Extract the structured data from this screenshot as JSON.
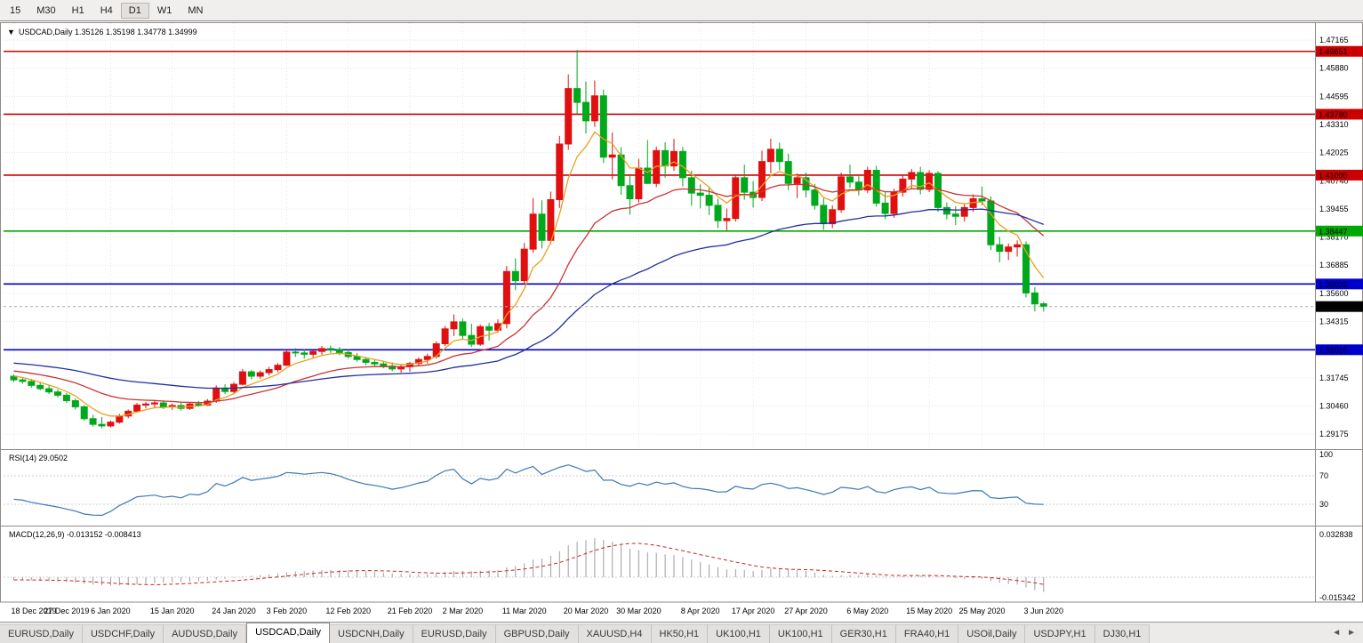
{
  "toolbar": {
    "timeframes": [
      "15",
      "M30",
      "H1",
      "H4",
      "D1",
      "W1",
      "MN"
    ],
    "active": "D1"
  },
  "chart_title": {
    "dropdown_glyph": "▼",
    "symbol": "USDCAD,Daily",
    "open": "1.35126",
    "high": "1.35198",
    "low": "1.34778",
    "close": "1.34999"
  },
  "price_axis": {
    "labels": [
      "1.47165",
      "1.45880",
      "1.44595",
      "1.43310",
      "1.42025",
      "1.40740",
      "1.39455",
      "1.38170",
      "1.36885",
      "1.35600",
      "1.34315",
      "1.33030",
      "1.31745",
      "1.30460",
      "1.29175"
    ]
  },
  "levels": [
    {
      "price": 1.46651,
      "label": "1.46651",
      "color": "#CC0000",
      "kind": "resistance"
    },
    {
      "price": 1.4378,
      "label": "1.43780",
      "color": "#CC0000",
      "kind": "resistance"
    },
    {
      "price": 1.41,
      "label": "1.41000",
      "color": "#CC0000",
      "kind": "resistance"
    },
    {
      "price": 1.38447,
      "label": "1.38447",
      "color": "#00A800",
      "kind": "support"
    },
    {
      "price": 1.36029,
      "label": "1.36029",
      "color": "#0000CC",
      "kind": "support"
    },
    {
      "price": 1.33026,
      "label": "1.33026",
      "color": "#0000CC",
      "kind": "support"
    }
  ],
  "current_price": {
    "price": 1.34999,
    "label": "1.34999"
  },
  "rsi": {
    "name": "RSI(14)",
    "value": "29.0502",
    "axis_labels": [
      "100",
      "70",
      "30"
    ],
    "levels": [
      70,
      30
    ],
    "line_color": "#3b77b5"
  },
  "macd": {
    "name": "MACD(12,26,9)",
    "value_main": "-0.013152",
    "value_signal": "-0.008413",
    "axis_top": "0.032838",
    "axis_bottom": "-0.015342",
    "hist_color": "#9e9e9e",
    "signal_color": "#cc2222"
  },
  "date_axis": {
    "labels": [
      {
        "text": "18 Dec 2019",
        "bar": 0
      },
      {
        "text": "27 Dec 2019",
        "bar": 6
      },
      {
        "text": "6 Jan 2020",
        "bar": 11
      },
      {
        "text": "15 Jan 2020",
        "bar": 18
      },
      {
        "text": "24 Jan 2020",
        "bar": 25
      },
      {
        "text": "3 Feb 2020",
        "bar": 31
      },
      {
        "text": "12 Feb 2020",
        "bar": 38
      },
      {
        "text": "21 Feb 2020",
        "bar": 45
      },
      {
        "text": "2 Mar 2020",
        "bar": 51
      },
      {
        "text": "11 Mar 2020",
        "bar": 58
      },
      {
        "text": "20 Mar 2020",
        "bar": 65
      },
      {
        "text": "30 Mar 2020",
        "bar": 71
      },
      {
        "text": "8 Apr 2020",
        "bar": 78
      },
      {
        "text": "17 Apr 2020",
        "bar": 84
      },
      {
        "text": "27 Apr 2020",
        "bar": 90
      },
      {
        "text": "6 May 2020",
        "bar": 97
      },
      {
        "text": "15 May 2020",
        "bar": 104
      },
      {
        "text": "25 May 2020",
        "bar": 110
      },
      {
        "text": "3 Jun 2020",
        "bar": 117
      }
    ]
  },
  "tabs": {
    "items": [
      "EURUSD,Daily",
      "USDCHF,Daily",
      "AUDUSD,Daily",
      "USDCAD,Daily",
      "USDCNH,Daily",
      "EURUSD,Daily",
      "GBPUSD,Daily",
      "XAUUSD,H4",
      "HK50,H1",
      "UK100,H1",
      "UK100,H1",
      "GER30,H1",
      "FRA40,H1",
      "USOil,Daily",
      "USDJPY,H1",
      "DJ30,H1"
    ],
    "active_index": 3,
    "scroll_icons": {
      "left": "◄",
      "right": "►"
    }
  },
  "chart_data": {
    "type": "candlestick",
    "symbol": "USDCAD",
    "timeframe": "Daily",
    "colors": {
      "up": "#E01010",
      "down": "#00A81C"
    },
    "overlays": [
      {
        "name": "ema-fast",
        "period": 6,
        "color": "#e8a020"
      },
      {
        "name": "ema-mid",
        "period": 20,
        "color": "#cc3333"
      },
      {
        "name": "ema-slow",
        "period": 50,
        "color": "#232f9e"
      }
    ],
    "pad": {
      "start": 1.333,
      "end": 1.318,
      "count": 50
    },
    "candles": [
      [
        1.3182,
        1.319,
        1.3155,
        1.3165
      ],
      [
        1.3165,
        1.3178,
        1.3148,
        1.3158
      ],
      [
        1.3158,
        1.317,
        1.313,
        1.314
      ],
      [
        1.314,
        1.3155,
        1.3118,
        1.3125
      ],
      [
        1.3125,
        1.314,
        1.31,
        1.311
      ],
      [
        1.311,
        1.3122,
        1.3085,
        1.3095
      ],
      [
        1.3095,
        1.3105,
        1.306,
        1.307
      ],
      [
        1.307,
        1.308,
        1.303,
        1.3042
      ],
      [
        1.3042,
        1.305,
        1.298,
        1.2988
      ],
      [
        1.2988,
        1.3005,
        1.2952,
        1.2962
      ],
      [
        1.2962,
        1.2995,
        1.2945,
        1.2955
      ],
      [
        1.2955,
        1.298,
        1.2948,
        1.2972
      ],
      [
        1.2972,
        1.301,
        1.2965,
        1.3
      ],
      [
        1.3,
        1.303,
        1.299,
        1.3022
      ],
      [
        1.3022,
        1.306,
        1.3015,
        1.305
      ],
      [
        1.305,
        1.3065,
        1.3035,
        1.3055
      ],
      [
        1.3055,
        1.307,
        1.304,
        1.306
      ],
      [
        1.306,
        1.3072,
        1.3032,
        1.3042
      ],
      [
        1.3042,
        1.3058,
        1.3028,
        1.3048
      ],
      [
        1.3048,
        1.306,
        1.3025,
        1.3035
      ],
      [
        1.3035,
        1.3062,
        1.3028,
        1.3055
      ],
      [
        1.3055,
        1.3068,
        1.3042,
        1.305
      ],
      [
        1.305,
        1.3078,
        1.3045,
        1.3068
      ],
      [
        1.3068,
        1.314,
        1.306,
        1.3128
      ],
      [
        1.3128,
        1.3145,
        1.31,
        1.3112
      ],
      [
        1.3112,
        1.3155,
        1.3105,
        1.3145
      ],
      [
        1.3145,
        1.3215,
        1.314,
        1.3202
      ],
      [
        1.3202,
        1.321,
        1.3168,
        1.3182
      ],
      [
        1.3182,
        1.3208,
        1.317,
        1.3198
      ],
      [
        1.3198,
        1.3225,
        1.3185,
        1.3212
      ],
      [
        1.3212,
        1.3242,
        1.32,
        1.3232
      ],
      [
        1.3232,
        1.3302,
        1.3228,
        1.3292
      ],
      [
        1.3292,
        1.331,
        1.327,
        1.3288
      ],
      [
        1.3288,
        1.3305,
        1.3262,
        1.3282
      ],
      [
        1.3282,
        1.33,
        1.3268,
        1.3295
      ],
      [
        1.3295,
        1.332,
        1.328,
        1.3308
      ],
      [
        1.3308,
        1.3322,
        1.3288,
        1.3302
      ],
      [
        1.3302,
        1.3315,
        1.3278,
        1.329
      ],
      [
        1.329,
        1.3305,
        1.3262,
        1.3272
      ],
      [
        1.3272,
        1.3288,
        1.3248,
        1.3258
      ],
      [
        1.3258,
        1.327,
        1.3232,
        1.3245
      ],
      [
        1.3245,
        1.326,
        1.3228,
        1.3238
      ],
      [
        1.3238,
        1.3252,
        1.3218,
        1.3228
      ],
      [
        1.3228,
        1.3245,
        1.3205,
        1.3215
      ],
      [
        1.3215,
        1.3235,
        1.3198,
        1.3225
      ],
      [
        1.3225,
        1.3248,
        1.3202,
        1.324
      ],
      [
        1.324,
        1.3268,
        1.3228,
        1.3258
      ],
      [
        1.3258,
        1.3285,
        1.324,
        1.3272
      ],
      [
        1.3272,
        1.3342,
        1.3262,
        1.333
      ],
      [
        1.333,
        1.3412,
        1.332,
        1.3398
      ],
      [
        1.3398,
        1.3464,
        1.3365,
        1.343
      ],
      [
        1.343,
        1.3445,
        1.335,
        1.3368
      ],
      [
        1.3368,
        1.3422,
        1.3315,
        1.3328
      ],
      [
        1.3328,
        1.3418,
        1.332,
        1.3408
      ],
      [
        1.3408,
        1.3425,
        1.3345,
        1.3392
      ],
      [
        1.3392,
        1.3442,
        1.338,
        1.3422
      ],
      [
        1.3422,
        1.3685,
        1.34,
        1.366
      ],
      [
        1.366,
        1.372,
        1.3575,
        1.3618
      ],
      [
        1.3618,
        1.379,
        1.36,
        1.3762
      ],
      [
        1.3762,
        1.3995,
        1.3745,
        1.3922
      ],
      [
        1.3922,
        1.3985,
        1.3765,
        1.3802
      ],
      [
        1.3802,
        1.4025,
        1.3785,
        1.3988
      ],
      [
        1.3988,
        1.4279,
        1.395,
        1.4242
      ],
      [
        1.4242,
        1.456,
        1.4215,
        1.4495
      ],
      [
        1.4495,
        1.4672,
        1.438,
        1.4432
      ],
      [
        1.4432,
        1.4528,
        1.429,
        1.4348
      ],
      [
        1.4348,
        1.4532,
        1.432,
        1.4462
      ],
      [
        1.4462,
        1.449,
        1.4155,
        1.4182
      ],
      [
        1.4182,
        1.4295,
        1.408,
        1.4192
      ],
      [
        1.4192,
        1.4228,
        1.401,
        1.4052
      ],
      [
        1.4052,
        1.4105,
        1.392,
        1.3992
      ],
      [
        1.3992,
        1.4175,
        1.3975,
        1.4132
      ],
      [
        1.4132,
        1.426,
        1.406,
        1.4062
      ],
      [
        1.4062,
        1.423,
        1.4045,
        1.4212
      ],
      [
        1.4212,
        1.425,
        1.4088,
        1.4142
      ],
      [
        1.4142,
        1.4265,
        1.412,
        1.4208
      ],
      [
        1.4208,
        1.4228,
        1.4048,
        1.4088
      ],
      [
        1.4088,
        1.412,
        1.396,
        1.4018
      ],
      [
        1.4018,
        1.4058,
        1.3948,
        1.4008
      ],
      [
        1.4008,
        1.4042,
        1.3918,
        1.3962
      ],
      [
        1.3962,
        1.3992,
        1.3858,
        1.3892
      ],
      [
        1.3892,
        1.3948,
        1.3848,
        1.3902
      ],
      [
        1.3902,
        1.4102,
        1.3888,
        1.4088
      ],
      [
        1.4088,
        1.4148,
        1.3988,
        1.4022
      ],
      [
        1.4022,
        1.4072,
        1.3952,
        1.3998
      ],
      [
        1.3998,
        1.4212,
        1.3982,
        1.4162
      ],
      [
        1.4162,
        1.4266,
        1.4108,
        1.4218
      ],
      [
        1.4218,
        1.4248,
        1.4122,
        1.4162
      ],
      [
        1.4162,
        1.4198,
        1.4032,
        1.4062
      ],
      [
        1.4062,
        1.4108,
        1.3995,
        1.4088
      ],
      [
        1.4088,
        1.4112,
        1.3998,
        1.4032
      ],
      [
        1.4032,
        1.406,
        1.3942,
        1.3962
      ],
      [
        1.3962,
        1.3995,
        1.385,
        1.3878
      ],
      [
        1.3878,
        1.3962,
        1.3858,
        1.3942
      ],
      [
        1.3942,
        1.4112,
        1.3928,
        1.4092
      ],
      [
        1.4092,
        1.4148,
        1.4042,
        1.4068
      ],
      [
        1.4068,
        1.4095,
        1.4008,
        1.4032
      ],
      [
        1.4032,
        1.4138,
        1.4018,
        1.4122
      ],
      [
        1.4122,
        1.4142,
        1.3955,
        1.3972
      ],
      [
        1.3972,
        1.4022,
        1.3898,
        1.3925
      ],
      [
        1.3925,
        1.4038,
        1.3905,
        1.4022
      ],
      [
        1.4022,
        1.4102,
        1.4002,
        1.4082
      ],
      [
        1.4082,
        1.4128,
        1.4035,
        1.4112
      ],
      [
        1.4112,
        1.4138,
        1.4012,
        1.4035
      ],
      [
        1.4035,
        1.4122,
        1.4022,
        1.4108
      ],
      [
        1.4108,
        1.4118,
        1.3932,
        1.3952
      ],
      [
        1.3952,
        1.3975,
        1.3898,
        1.3922
      ],
      [
        1.3922,
        1.3958,
        1.3872,
        1.3912
      ],
      [
        1.3912,
        1.3972,
        1.3888,
        1.3952
      ],
      [
        1.3952,
        1.4012,
        1.3932,
        1.3992
      ],
      [
        1.3992,
        1.4048,
        1.3962,
        1.3982
      ],
      [
        1.3982,
        1.4002,
        1.3758,
        1.3782
      ],
      [
        1.3782,
        1.3818,
        1.3702,
        1.3752
      ],
      [
        1.3752,
        1.3788,
        1.3712,
        1.3772
      ],
      [
        1.3772,
        1.3802,
        1.3728,
        1.3782
      ],
      [
        1.3782,
        1.3798,
        1.3542,
        1.3562
      ],
      [
        1.3562,
        1.3588,
        1.3478,
        1.3512
      ],
      [
        1.35126,
        1.35198,
        1.34778,
        1.34999
      ]
    ]
  }
}
